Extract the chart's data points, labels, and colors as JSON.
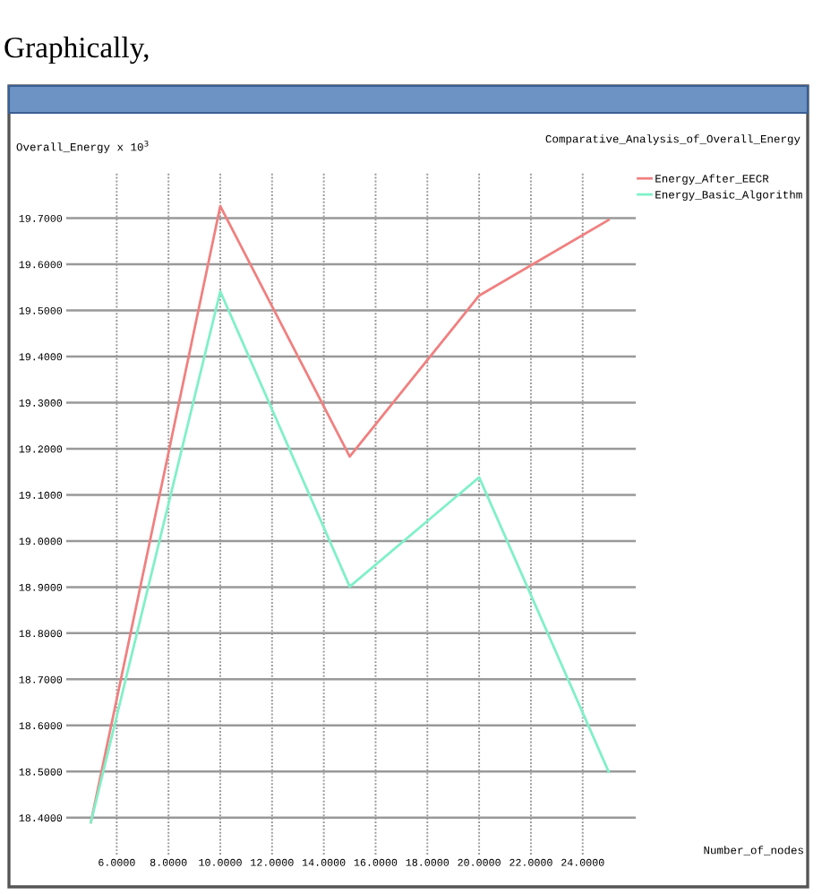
{
  "chart_data": {
    "type": "line",
    "title": "Comparative_Analysis_of_Overall_Energy",
    "ylabel": "Overall_Energy x 10$^{3}$",
    "annotations": [
      "Graphically,",
      "Number_of_nodes"
    ],
    "x": [
      5,
      10,
      15,
      20,
      25
    ],
    "series": [
      {
        "name": "Energy_After_EECR",
        "color": "#f08080",
        "values": [
          18.39,
          19.726,
          19.183,
          19.532,
          19.696
        ]
      },
      {
        "name": "Energy_Basic_Algorithm",
        "color": "#80f0c8",
        "values": [
          18.39,
          19.541,
          18.901,
          19.138,
          18.5
        ]
      }
    ],
    "xlim": [
      4.05,
      26.05
    ],
    "ylim": [
      18.32,
      19.8
    ],
    "xticks": [
      {
        "value": 6,
        "label": "6.0000"
      },
      {
        "value": 8,
        "label": "8.0000"
      },
      {
        "value": 10,
        "label": "10.0000"
      },
      {
        "value": 12,
        "label": "12.0000"
      },
      {
        "value": 14,
        "label": "14.0000"
      },
      {
        "value": 16,
        "label": "16.0000"
      },
      {
        "value": 18,
        "label": "18.0000"
      },
      {
        "value": 20,
        "label": "20.0000"
      },
      {
        "value": 22,
        "label": "22.0000"
      },
      {
        "value": 24,
        "label": "24.0000"
      }
    ],
    "yticks": [
      {
        "value": 18.4,
        "label": "18.4000"
      },
      {
        "value": 18.5,
        "label": "18.5000"
      },
      {
        "value": 18.6,
        "label": "18.6000"
      },
      {
        "value": 18.7,
        "label": "18.7000"
      },
      {
        "value": 18.8,
        "label": "18.8000"
      },
      {
        "value": 18.9,
        "label": "18.9000"
      },
      {
        "value": 19.0,
        "label": "19.0000"
      },
      {
        "value": 19.1,
        "label": "19.1000"
      },
      {
        "value": 19.2,
        "label": "19.2000"
      },
      {
        "value": 19.3,
        "label": "19.3000"
      },
      {
        "value": 19.4,
        "label": "19.4000"
      },
      {
        "value": 19.5,
        "label": "19.5000"
      },
      {
        "value": 19.6,
        "label": "19.6000"
      },
      {
        "value": 19.7,
        "label": "19.7000"
      }
    ],
    "grid": true,
    "legend": "top right",
    "marker": "none",
    "line_style": "solid"
  }
}
